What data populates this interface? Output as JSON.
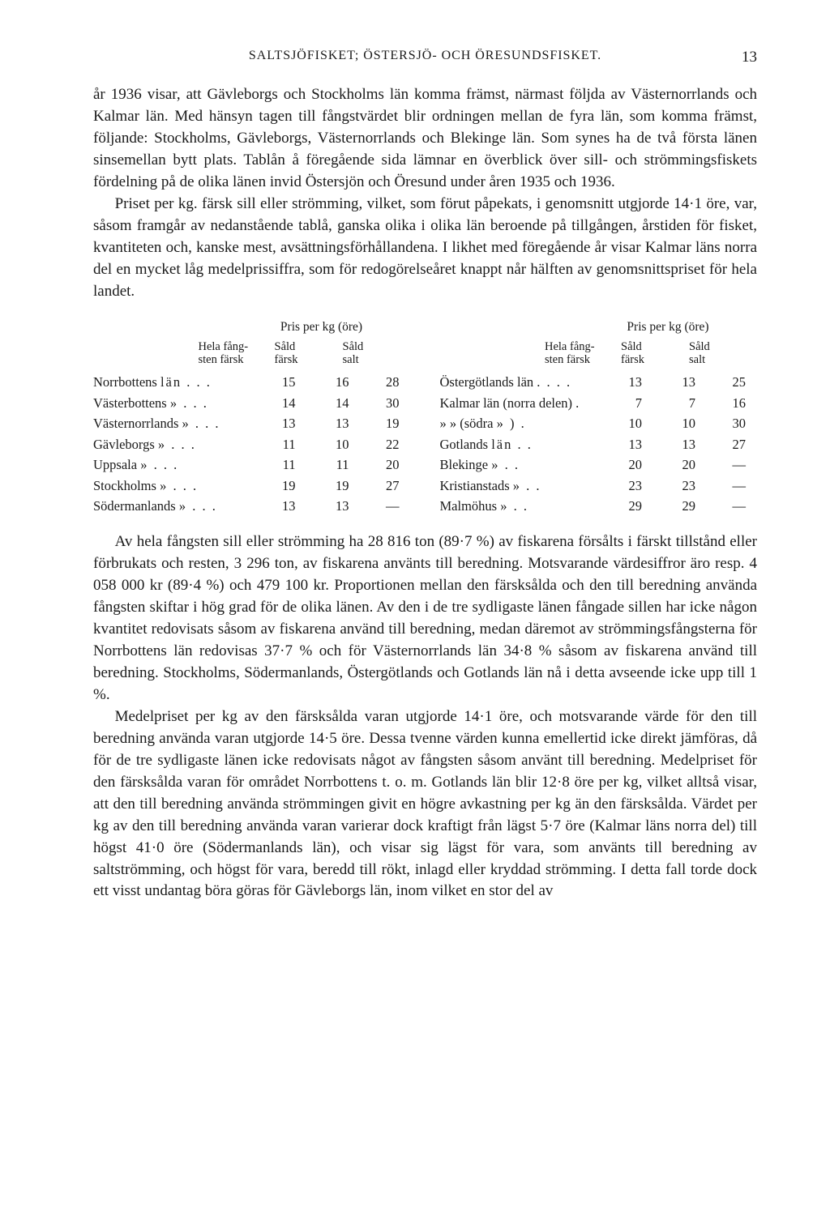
{
  "page_number": "13",
  "running_head": "SALTSJÖFISKET; ÖSTERSJÖ- OCH ÖRESUNDSFISKET.",
  "paragraphs": {
    "p1": "år 1936 visar, att Gävleborgs och Stockholms län komma främst, närmast följda av Västernorrlands och Kalmar län. Med hänsyn tagen till fångstvärdet blir ordningen mellan de fyra län, som komma främst, följande: Stockholms, Gävleborgs, Västernorrlands och Blekinge län. Som synes ha de två första länen sinsemellan bytt plats. Tablån å föregående sida lämnar en överblick över sill- och strömmingsfiskets fördelning på de olika länen invid Östersjön och Öresund under åren 1935 och 1936.",
    "p2": "Priset per kg. färsk sill eller strömming, vilket, som förut påpekats, i genomsnitt utgjorde 14·1 öre, var, såsom framgår av nedanstående tablå, ganska olika i olika län beroende på tillgången, årstiden för fisket, kvantiteten och, kanske mest, avsättningsförhållandena. I likhet med föregående år visar Kalmar läns norra del en mycket låg medelprissiffra, som för redogörelseåret knappt når hälften av genomsnittspriset för hela landet.",
    "p3": "Av hela fångsten sill eller strömming ha 28 816 ton (89·7 %) av fiskarena försålts i färskt tillstånd eller förbrukats och resten, 3 296 ton, av fiskarena använts till beredning. Motsvarande värdesiffror äro resp. 4 058 000 kr (89·4 %) och 479 100 kr. Proportionen mellan den färsksålda och den till beredning använda fångsten skiftar i hög grad för de olika länen. Av den i de tre sydligaste länen fångade sillen har icke någon kvantitet redovisats såsom av fiskarena använd till beredning, medan däremot av strömmingsfångsterna för Norrbottens län redovisas 37·7 % och för Västernorrlands län 34·8 % såsom av fiskarena använd till beredning. Stockholms, Södermanlands, Östergötlands och Gotlands län nå i detta avseende icke upp till 1 %.",
    "p4": "Medelpriset per kg av den färsksålda varan utgjorde 14·1 öre, och motsvarande värde för den till beredning använda varan utgjorde 14·5 öre. Dessa tvenne värden kunna emellertid icke direkt jämföras, då för de tre sydligaste länen icke redovisats något av fångsten såsom använt till beredning. Medelpriset för den färsksålda varan för området Norrbottens t. o. m. Gotlands län blir 12·8 öre per kg, vilket alltså visar, att den till beredning använda strömmingen givit en högre avkastning per kg än den färsksålda. Värdet per kg av den till beredning använda varan varierar dock kraftigt från lägst 5·7 öre (Kalmar läns norra del) till högst 41·0 öre (Södermanlands län), och visar sig lägst för vara, som använts till beredning av saltströmming, och högst för vara, beredd till rökt, inlagd eller kryddad strömming. I detta fall torde dock ett visst undantag böra göras för Gävleborgs län, inom vilket en stor del av"
  },
  "table": {
    "pris_header": "Pris per kg (öre)",
    "col_labels": {
      "hela": "Hela fång-\nsten färsk",
      "sald_farsk": "Såld\nfärsk",
      "sald_salt": "Såld\nsalt"
    },
    "left": [
      {
        "region": "Norrbottens",
        "suffix": "län . . .",
        "v1": "15",
        "v2": "16",
        "v3": "28"
      },
      {
        "region": "Västerbottens",
        "suffix": "»   . . .",
        "v1": "14",
        "v2": "14",
        "v3": "30"
      },
      {
        "region": "Västernorrlands",
        "suffix": "»   . . .",
        "v1": "13",
        "v2": "13",
        "v3": "19"
      },
      {
        "region": "Gävleborgs",
        "suffix": "»   . . .",
        "v1": "11",
        "v2": "10",
        "v3": "22"
      },
      {
        "region": "Uppsala",
        "suffix": "»   . . .",
        "v1": "11",
        "v2": "11",
        "v3": "20"
      },
      {
        "region": "Stockholms",
        "suffix": "»   . . .",
        "v1": "19",
        "v2": "19",
        "v3": "27"
      },
      {
        "region": "Södermanlands",
        "suffix": "»   . . .",
        "v1": "13",
        "v2": "13",
        "v3": "—"
      }
    ],
    "right": [
      {
        "region": "Östergötlands län",
        "suffix": ". . . .",
        "v1": "13",
        "v2": "13",
        "v3": "25"
      },
      {
        "region": "Kalmar län (norra delen)",
        "suffix": ".",
        "v1": "7",
        "v2": "7",
        "v3": "16"
      },
      {
        "region": "»       »   (södra",
        "suffix": "»  ) .",
        "v1": "10",
        "v2": "10",
        "v3": "30"
      },
      {
        "region": "Gotlands",
        "suffix": "län . .",
        "v1": "13",
        "v2": "13",
        "v3": "27"
      },
      {
        "region": "Blekinge",
        "suffix": "»   . .",
        "v1": "20",
        "v2": "20",
        "v3": "—"
      },
      {
        "region": "Kristianstads",
        "suffix": "»   . .",
        "v1": "23",
        "v2": "23",
        "v3": "—"
      },
      {
        "region": "Malmöhus",
        "suffix": "»   . .",
        "v1": "29",
        "v2": "29",
        "v3": "—"
      }
    ]
  }
}
